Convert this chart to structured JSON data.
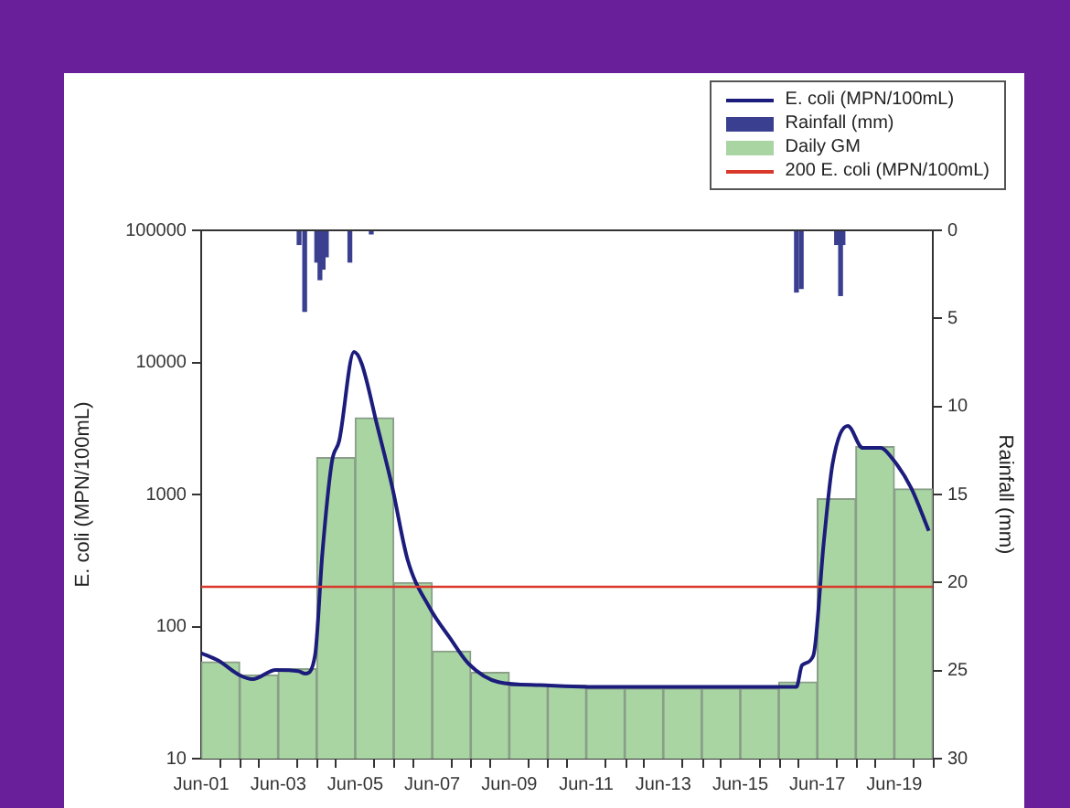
{
  "chart_data": {
    "type": "line",
    "xlim": [
      "--06-01",
      "--06-20"
    ],
    "xticks": [
      {
        "value": "--06-01",
        "label": "Jun-01"
      },
      {
        "value": "--06-02",
        "label": null
      },
      {
        "value": "--06-03",
        "label": "Jun-03"
      },
      {
        "value": "--06-04",
        "label": null
      },
      {
        "value": "--06-05",
        "label": "Jun-05"
      },
      {
        "value": "--06-06",
        "label": null
      },
      {
        "value": "--06-07",
        "label": "Jun-07"
      },
      {
        "value": "--06-08",
        "label": null
      },
      {
        "value": "--06-09",
        "label": "Jun-09"
      },
      {
        "value": "--06-10",
        "label": null
      },
      {
        "value": "--06-11",
        "label": "Jun-11"
      },
      {
        "value": "--06-12",
        "label": null
      },
      {
        "value": "--06-13",
        "label": "Jun-13"
      },
      {
        "value": "--06-14",
        "label": null
      },
      {
        "value": "--06-15",
        "label": "Jun-15"
      },
      {
        "value": "--06-16",
        "label": null
      },
      {
        "value": "--06-17",
        "label": "Jun-17"
      },
      {
        "value": "--06-18",
        "label": null
      },
      {
        "value": "--06-19",
        "label": "Jun-19"
      },
      {
        "value": "--06-20",
        "label": null
      }
    ],
    "ylabel": "E. coli (MPN/100mL)",
    "y2label": "Rainfall (mm)",
    "log": "y",
    "ylim": [
      10,
      100000
    ],
    "yticks": [
      10,
      100,
      1000,
      10000,
      100000
    ],
    "y2lim": [
      30,
      0
    ],
    "y2ticks": [
      0,
      5,
      10,
      15,
      20,
      25,
      30
    ],
    "grid": false,
    "legend": "top right",
    "series": [
      {
        "name": "E. coli (MPN/100mL)",
        "color": "#1c1c7c",
        "x": [
          "--06-01T00:00",
          "--06-01T11:00",
          "--06-01T23:45",
          "--06-02T08:00",
          "--06-02T22:30",
          "--06-03T12:30",
          "--06-03T17:00",
          "--06-03T23:00",
          "--06-04T03:30",
          "--06-04T09:30",
          "--06-04T14:00",
          "--06-04T23:15",
          "--06-05T04:00",
          "--06-05T13:45",
          "--06-05T23:00",
          "--06-06T08:40",
          "--06-06T22:30",
          "--06-07T11:00",
          "--06-07T22:50",
          "--06-08T17:15",
          "--06-09T19:00",
          "--06-11T00:00",
          "--06-13T00:00",
          "--06-15T00:00",
          "--06-16T11:00",
          "--06-16T14:30",
          "--06-16T21:30",
          "--06-17T04:00",
          "--06-17T09:30",
          "--06-17T19:00",
          "--06-18T04:20",
          "--06-18T15:30",
          "--06-18T22:20",
          "--06-19T10:30",
          "--06-19T21:30"
        ],
        "values": [
          63,
          55,
          43,
          40,
          47,
          46,
          44,
          61,
          355,
          1780,
          2550,
          12000,
          9800,
          3300,
          1150,
          320,
          138,
          82,
          52,
          38,
          36,
          35,
          35,
          35,
          35,
          51,
          60,
          430,
          1700,
          3300,
          2250,
          2250,
          1900,
          1120,
          530
        ]
      },
      {
        "name": "Rainfall (mm)",
        "type": "bar",
        "axis": "y2",
        "color": "#3a3f8f",
        "x": [
          "--06-03T13:00",
          "--06-03T16:30",
          "--06-04T00:00",
          "--06-04T02:00",
          "--06-04T04:00",
          "--06-04T06:00",
          "--06-04T20:40",
          "--06-05T10:00",
          "--06-16T11:00",
          "--06-16T14:00",
          "--06-17T12:00",
          "--06-17T14:30",
          "--06-17T16:00"
        ],
        "values": [
          0.8,
          4.6,
          1.8,
          2.8,
          2.2,
          1.5,
          1.8,
          0.2,
          3.5,
          3.3,
          0.8,
          3.7,
          0.8
        ]
      },
      {
        "name": "Daily GM",
        "type": "bar",
        "color": "#a9d5a3",
        "x": [
          "--06-01T12:00",
          "--06-02T12:00",
          "--06-03T12:00",
          "--06-04T12:00",
          "--06-05T12:00",
          "--06-06T12:00",
          "--06-07T12:00",
          "--06-08T12:00",
          "--06-09T12:00",
          "--06-10T12:00",
          "--06-11T12:00",
          "--06-12T12:00",
          "--06-13T12:00",
          "--06-14T12:00",
          "--06-15T12:00",
          "--06-16T12:00",
          "--06-17T12:00",
          "--06-18T12:00",
          "--06-19T12:00"
        ],
        "values": [
          54,
          43,
          48,
          1900,
          3800,
          215,
          65,
          45,
          36,
          36,
          34,
          34,
          34,
          34,
          34,
          38,
          930,
          2300,
          1100
        ]
      }
    ],
    "ref_lines": [
      {
        "axis": "y",
        "value": 200,
        "label": "200 E. coli (MPN/100mL)",
        "color": "#d9392b",
        "line_style": "solid"
      }
    ]
  }
}
